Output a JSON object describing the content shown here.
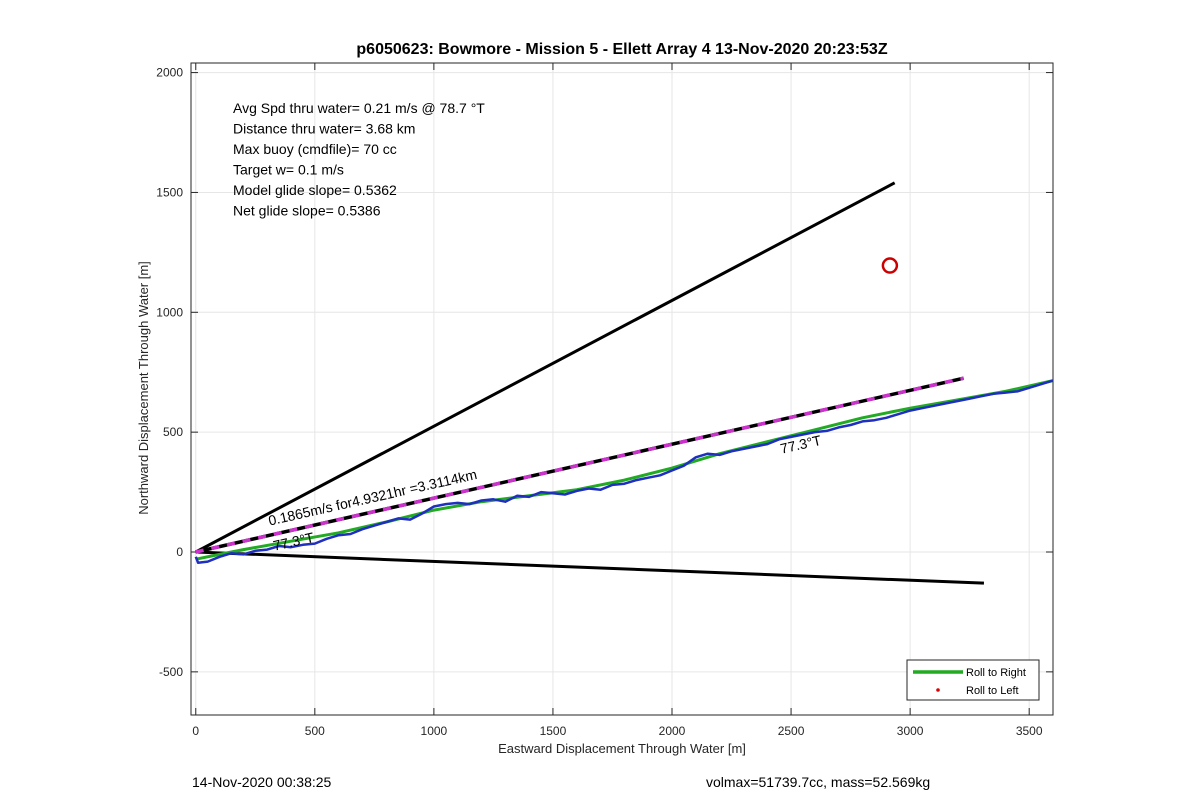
{
  "footer": {
    "timestamp": "14-Nov-2020 00:38:25",
    "vol_mass": "volmax=51739.7cc, mass=52.569kg"
  },
  "chart_data": {
    "type": "line",
    "title": "p6050623: Bowmore - Mission 5 - Ellett Array 4 13-Nov-2020 20:23:53Z",
    "xlabel": "Eastward Displacement Through Water [m]",
    "ylabel": "Northward Displacement Through Water [m]",
    "xlim": [
      -20,
      3600
    ],
    "ylim": [
      -680,
      2040
    ],
    "xticks": [
      0,
      500,
      1000,
      1500,
      2000,
      2500,
      3000,
      3500
    ],
    "yticks": [
      -500,
      0,
      500,
      1000,
      1500,
      2000
    ],
    "grid": true,
    "stats": [
      "Avg Spd thru water=  0.21 m/s @  78.7 °T",
      "Distance thru water=  3.68 km",
      "Max buoy (cmdfile)= 70 cc",
      "Target w= 0.1 m/s",
      "Model glide slope= 0.5362",
      "Net glide slope= 0.5386"
    ],
    "reference_lines": [
      {
        "from": [
          0,
          0
        ],
        "to": [
          2935,
          1540
        ],
        "color": "#000000"
      },
      {
        "from": [
          0,
          0
        ],
        "to": [
          3310,
          -130
        ],
        "color": "#000000"
      },
      {
        "from": [
          0,
          0
        ],
        "to": [
          3225,
          725
        ],
        "color": "#cc33cc",
        "dashed_with": "#000000"
      }
    ],
    "annotations": [
      {
        "text": "0.1865m/s for4.9321hr =3.3114km",
        "x": 310,
        "y": 110,
        "rotation": -12.7
      },
      {
        "text": "77.3°T",
        "x": 330,
        "y": 5,
        "rotation": -12.7
      },
      {
        "text": "77.3°T",
        "x": 2460,
        "y": 410,
        "rotation": -12.7
      }
    ],
    "series": [
      {
        "name": "Roll to Right",
        "color": "#22aa22",
        "x": [
          0,
          100,
          200,
          400,
          600,
          800,
          1000,
          1200,
          1400,
          1600,
          1800,
          2000,
          2200,
          2400,
          2600,
          2800,
          3000,
          3200,
          3400,
          3600
        ],
        "y": [
          -30,
          -10,
          10,
          45,
          80,
          125,
          175,
          210,
          235,
          260,
          300,
          350,
          410,
          460,
          510,
          560,
          600,
          635,
          670,
          715
        ]
      },
      {
        "name": "Roll to Left",
        "color": "#dd0000",
        "marker": "dot",
        "x": [],
        "y": []
      },
      {
        "name": "",
        "color": "#1f2fbf",
        "x": [
          0,
          10,
          50,
          100,
          150,
          200,
          250,
          300,
          350,
          400,
          450,
          500,
          550,
          600,
          650,
          700,
          750,
          800,
          850,
          900,
          950,
          1000,
          1050,
          1100,
          1150,
          1200,
          1250,
          1300,
          1350,
          1400,
          1450,
          1500,
          1550,
          1600,
          1650,
          1700,
          1750,
          1800,
          1850,
          1900,
          1950,
          2000,
          2050,
          2100,
          2150,
          2200,
          2250,
          2300,
          2350,
          2400,
          2450,
          2500,
          2550,
          2600,
          2650,
          2700,
          2750,
          2800,
          2850,
          2900,
          2950,
          3000,
          3050,
          3100,
          3150,
          3200,
          3250,
          3300,
          3350,
          3400,
          3450,
          3500,
          3550,
          3600
        ],
        "y": [
          -20,
          -45,
          -40,
          -20,
          -5,
          -10,
          5,
          10,
          25,
          20,
          30,
          35,
          55,
          70,
          75,
          95,
          110,
          125,
          140,
          135,
          160,
          190,
          200,
          205,
          200,
          215,
          220,
          210,
          235,
          230,
          250,
          245,
          240,
          255,
          265,
          260,
          280,
          285,
          300,
          310,
          320,
          340,
          360,
          395,
          410,
          405,
          420,
          430,
          440,
          450,
          470,
          480,
          490,
          500,
          505,
          520,
          530,
          545,
          550,
          560,
          575,
          590,
          600,
          610,
          620,
          630,
          640,
          650,
          660,
          665,
          670,
          685,
          700,
          715
        ]
      }
    ],
    "markers": [
      {
        "type": "circle",
        "x": 2915,
        "y": 1195,
        "color": "#cc0000"
      }
    ],
    "legend": {
      "placement": "bottom-right",
      "entries": [
        "Roll to Right",
        "Roll to Left"
      ]
    }
  }
}
